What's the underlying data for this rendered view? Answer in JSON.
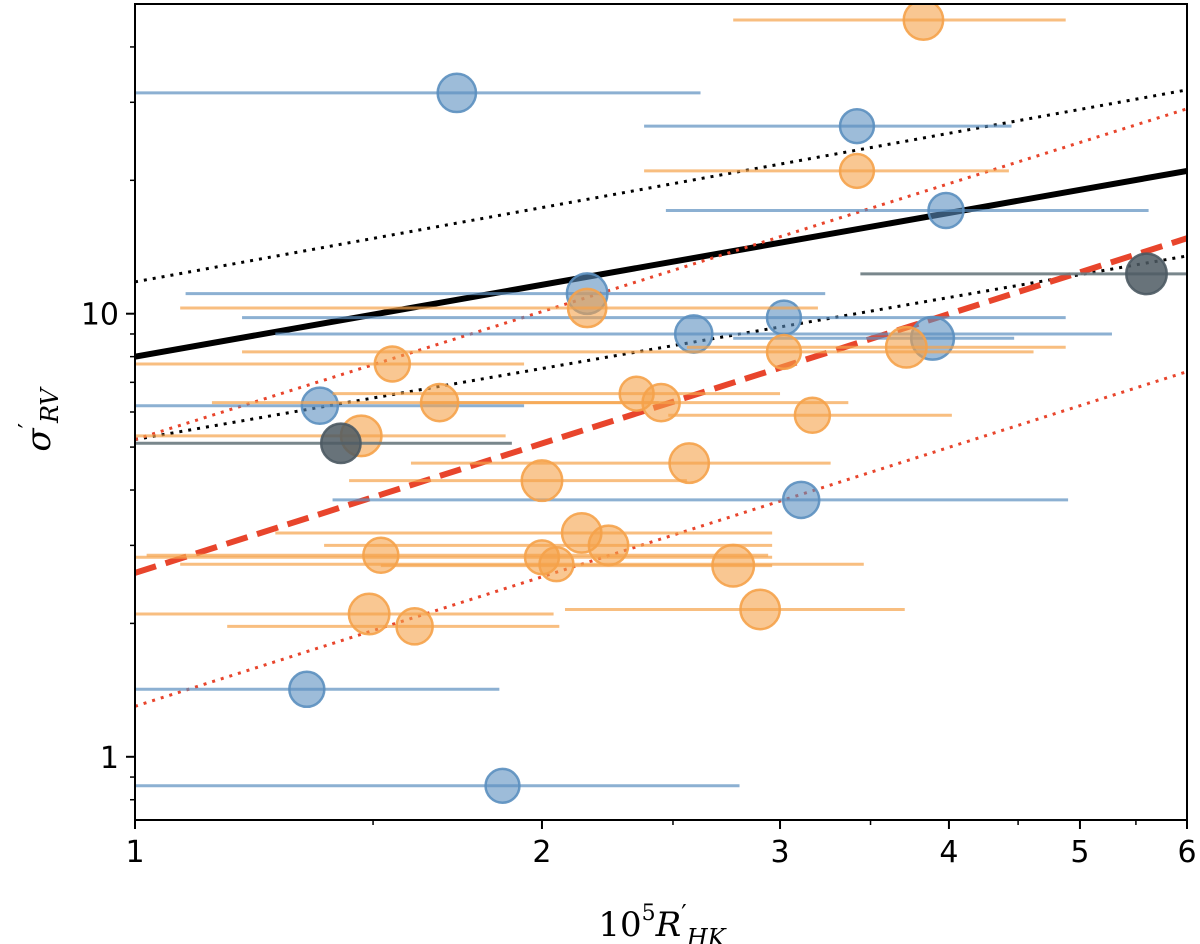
{
  "chart_data": {
    "type": "scatter",
    "title": "",
    "xscale": "log",
    "yscale": "log",
    "xlim": [
      1,
      6
    ],
    "ylim": [
      0.72,
      50
    ],
    "xlabel": {
      "base": "10",
      "sup": "5",
      "main": "R",
      "prime": "′",
      "sub": "HK"
    },
    "ylabel": {
      "main": "σ",
      "prime": "′",
      "sub": "RV"
    },
    "xticks": [
      {
        "value": 1,
        "label": "1"
      },
      {
        "value": 2,
        "label": "2"
      },
      {
        "value": 3,
        "label": "3"
      },
      {
        "value": 4,
        "label": "4"
      },
      {
        "value": 5,
        "label": "5"
      },
      {
        "value": 6,
        "label": "6"
      }
    ],
    "yticks": [
      {
        "value": 1,
        "label": "1"
      },
      {
        "value": 10,
        "label": "10"
      }
    ],
    "colors": {
      "blue_fill": "#5b8fbf",
      "blue_bar": "#5b8fbf",
      "orange_fill": "#f5a24a",
      "orange_bar": "#f5a24a",
      "gray_fill": "#4d5a63",
      "gray_bar": "#6a7a80",
      "black_line": "#000000",
      "red_line": "#e8452c"
    },
    "lines": [
      {
        "name": "black-fit",
        "style": "solid",
        "color": "#000000",
        "width": 6,
        "from": [
          1,
          8.0
        ],
        "to": [
          6,
          21.0
        ]
      },
      {
        "name": "black-upper",
        "style": "dotted",
        "color": "#000000",
        "width": 3,
        "from": [
          1,
          11.8
        ],
        "to": [
          6,
          32.0
        ]
      },
      {
        "name": "black-lower",
        "style": "dotted",
        "color": "#000000",
        "width": 3,
        "from": [
          1,
          5.2
        ],
        "to": [
          6,
          13.5
        ]
      },
      {
        "name": "red-fit",
        "style": "dashed",
        "color": "#e8452c",
        "width": 6,
        "from": [
          1,
          2.6
        ],
        "to": [
          6,
          14.8
        ]
      },
      {
        "name": "red-upper",
        "style": "dotted",
        "color": "#e8452c",
        "width": 3,
        "from": [
          1,
          5.2
        ],
        "to": [
          6,
          29.0
        ]
      },
      {
        "name": "red-lower",
        "style": "dotted",
        "color": "#e8452c",
        "width": 3,
        "from": [
          1,
          1.3
        ],
        "to": [
          6,
          7.4
        ]
      }
    ],
    "series": [
      {
        "name": "blue",
        "points": [
          {
            "x": 1.73,
            "y": 31.5,
            "xmin": 1.0,
            "xmax": 2.62,
            "size": 0.65
          },
          {
            "x": 3.42,
            "y": 26.5,
            "xmin": 2.38,
            "xmax": 4.45,
            "size": 0.45
          },
          {
            "x": 3.98,
            "y": 17.1,
            "xmin": 2.47,
            "xmax": 5.62,
            "size": 0.5
          },
          {
            "x": 2.16,
            "y": 11.1,
            "xmin": 1.09,
            "xmax": 3.24,
            "size": 0.75
          },
          {
            "x": 3.02,
            "y": 9.8,
            "xmin": 1.2,
            "xmax": 4.88,
            "size": 0.45
          },
          {
            "x": 2.59,
            "y": 9.0,
            "xmin": 1.27,
            "xmax": 5.28,
            "size": 0.6
          },
          {
            "x": 3.89,
            "y": 8.8,
            "xmin": 2.77,
            "xmax": 4.47,
            "size": 0.85
          },
          {
            "x": 1.37,
            "y": 6.2,
            "xmin": 1.0,
            "xmax": 1.94,
            "size": 0.55
          },
          {
            "x": 3.11,
            "y": 3.8,
            "xmin": 1.4,
            "xmax": 4.9,
            "size": 0.55
          },
          {
            "x": 1.34,
            "y": 1.42,
            "xmin": 1.0,
            "xmax": 1.86,
            "size": 0.5
          },
          {
            "x": 1.87,
            "y": 0.86,
            "xmin": 1.0,
            "xmax": 2.8,
            "size": 0.45
          }
        ]
      },
      {
        "name": "orange",
        "points": [
          {
            "x": 3.83,
            "y": 46.0,
            "xmin": 2.77,
            "xmax": 4.88,
            "size": 0.7
          },
          {
            "x": 3.42,
            "y": 21.0,
            "xmin": 2.38,
            "xmax": 4.43,
            "size": 0.45
          },
          {
            "x": 2.16,
            "y": 10.3,
            "xmin": 1.08,
            "xmax": 3.2,
            "size": 0.65
          },
          {
            "x": 3.02,
            "y": 8.2,
            "xmin": 1.2,
            "xmax": 4.62,
            "size": 0.45
          },
          {
            "x": 3.72,
            "y": 8.4,
            "xmin": 2.56,
            "xmax": 4.88,
            "size": 0.75
          },
          {
            "x": 1.55,
            "y": 7.7,
            "xmin": 1.0,
            "xmax": 1.94,
            "size": 0.5
          },
          {
            "x": 2.35,
            "y": 6.6,
            "xmin": 1.4,
            "xmax": 3.0,
            "size": 0.45
          },
          {
            "x": 1.68,
            "y": 6.3,
            "xmin": 1.14,
            "xmax": 2.44,
            "size": 0.6
          },
          {
            "x": 2.45,
            "y": 6.3,
            "xmin": 1.63,
            "xmax": 3.37,
            "size": 0.6
          },
          {
            "x": 3.17,
            "y": 5.9,
            "xmin": 2.48,
            "xmax": 4.02,
            "size": 0.5
          },
          {
            "x": 1.47,
            "y": 5.3,
            "xmin": 1.0,
            "xmax": 1.88,
            "size": 0.75
          },
          {
            "x": 2.57,
            "y": 4.6,
            "xmin": 1.6,
            "xmax": 3.27,
            "size": 0.7
          },
          {
            "x": 2.0,
            "y": 4.2,
            "xmin": 1.44,
            "xmax": 2.56,
            "size": 0.75
          },
          {
            "x": 2.14,
            "y": 3.2,
            "xmin": 1.27,
            "xmax": 2.96,
            "size": 0.7
          },
          {
            "x": 2.24,
            "y": 3.0,
            "xmin": 1.38,
            "xmax": 2.96,
            "size": 0.7
          },
          {
            "x": 1.52,
            "y": 2.85,
            "xmin": 1.02,
            "xmax": 2.94,
            "size": 0.5
          },
          {
            "x": 2.0,
            "y": 2.82,
            "xmin": 1.0,
            "xmax": 2.96,
            "size": 0.45
          },
          {
            "x": 2.05,
            "y": 2.72,
            "xmin": 1.08,
            "xmax": 3.46,
            "size": 0.45
          },
          {
            "x": 2.77,
            "y": 2.7,
            "xmin": 1.52,
            "xmax": 2.96,
            "size": 0.8
          },
          {
            "x": 1.49,
            "y": 2.1,
            "xmin": 1.0,
            "xmax": 2.04,
            "size": 0.75
          },
          {
            "x": 1.61,
            "y": 1.97,
            "xmin": 1.17,
            "xmax": 2.06,
            "size": 0.55
          },
          {
            "x": 2.9,
            "y": 2.15,
            "xmin": 2.08,
            "xmax": 3.71,
            "size": 0.7
          }
        ]
      },
      {
        "name": "gray",
        "points": [
          {
            "x": 1.42,
            "y": 5.1,
            "xmin": 1.0,
            "xmax": 1.9,
            "size": 0.7
          },
          {
            "x": 5.6,
            "y": 12.3,
            "xmin": 3.44,
            "xmax": 6.0,
            "size": 0.75
          }
        ]
      }
    ]
  }
}
